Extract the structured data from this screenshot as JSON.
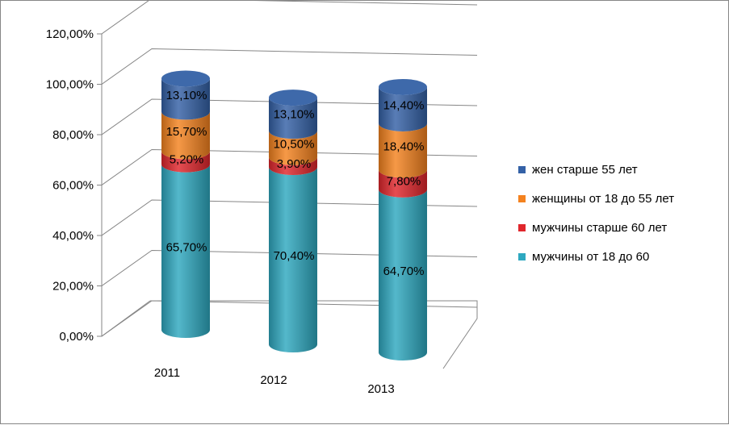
{
  "chart_data": {
    "type": "bar",
    "subtype": "stacked-cylinder-3d",
    "title": "",
    "xlabel": "",
    "ylabel": "",
    "ylim": [
      0,
      120
    ],
    "ytick_step": 20,
    "y_tick_labels": [
      "0,00%",
      "20,00%",
      "40,00%",
      "60,00%",
      "80,00%",
      "100,00%",
      "120,00%"
    ],
    "categories": [
      "2011",
      "2012",
      "2013"
    ],
    "series": [
      {
        "name": "мужчины от 18 до 60",
        "color": "#2EA8C0",
        "values": [
          65.7,
          70.4,
          64.7
        ],
        "labels": [
          "65,70%",
          "70,40%",
          "64,70%"
        ]
      },
      {
        "name": "мужчины старше 60 лет",
        "color": "#E0262C",
        "values": [
          5.2,
          3.9,
          7.8
        ],
        "labels": [
          "5,20%",
          "3,90%",
          "7,80%"
        ]
      },
      {
        "name": "женщины от 18 до 55 лет",
        "color": "#F4821F",
        "values": [
          15.7,
          10.5,
          18.4
        ],
        "labels": [
          "15,70%",
          "10,50%",
          "18,40%"
        ]
      },
      {
        "name": "жен старше 55 лет",
        "color": "#3461A6",
        "values": [
          13.1,
          13.1,
          14.4
        ],
        "labels": [
          "13,10%",
          "13,10%",
          "14,40%"
        ]
      }
    ],
    "legend": {
      "position": "right",
      "order": [
        "жен старше 55 лет",
        "женщины от 18 до 55 лет",
        "мужчины старше 60 лет",
        "мужчины от 18 до 60"
      ]
    },
    "grid": true
  }
}
